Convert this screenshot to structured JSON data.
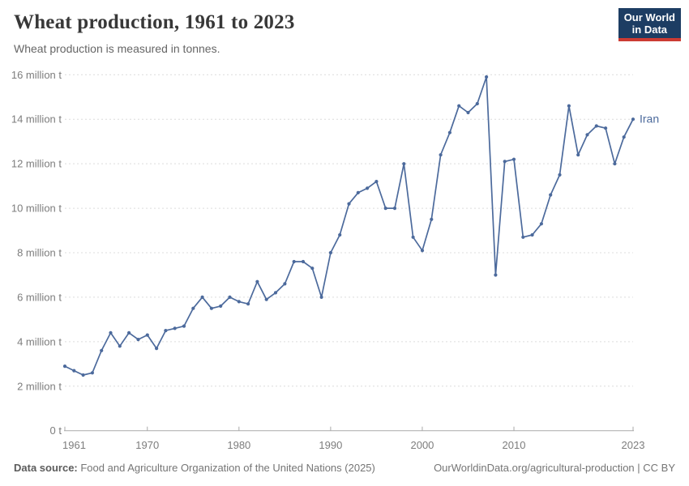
{
  "header": {
    "title": "Wheat production, 1961 to 2023",
    "subtitle": "Wheat production is measured in tonnes.",
    "logo": {
      "line1": "Our World",
      "line2": "in Data",
      "bg_color": "#1d3d63",
      "accent_color": "#cc3b33"
    }
  },
  "chart_data": {
    "type": "line",
    "title": "Wheat production, 1961 to 2023",
    "unit": "tonnes",
    "value_unit_of_series": "million tonnes",
    "legend_position": "end-of-line-label",
    "grid": "horizontal-dashed",
    "ylim_million_tonnes": [
      0,
      16
    ],
    "xlim_years": [
      1961,
      2023
    ],
    "x_tick_labels": [
      {
        "value": 1961,
        "label": "1961"
      },
      {
        "value": 1970,
        "label": "1970"
      },
      {
        "value": 1980,
        "label": "1980"
      },
      {
        "value": 1990,
        "label": "1990"
      },
      {
        "value": 2000,
        "label": "2000"
      },
      {
        "value": 2010,
        "label": "2010"
      },
      {
        "value": 2023,
        "label": "2023"
      }
    ],
    "y_tick_labels": [
      {
        "value": 0,
        "label": "0 t"
      },
      {
        "value": 2,
        "label": "2 million t"
      },
      {
        "value": 4,
        "label": "4 million t"
      },
      {
        "value": 6,
        "label": "6 million t"
      },
      {
        "value": 8,
        "label": "8 million t"
      },
      {
        "value": 10,
        "label": "10 million t"
      },
      {
        "value": 12,
        "label": "12 million t"
      },
      {
        "value": 14,
        "label": "14 million t"
      },
      {
        "value": 16,
        "label": "16 million t"
      }
    ],
    "series": [
      {
        "name": "Iran",
        "color": "#4C6A9C",
        "years": [
          1961,
          1962,
          1963,
          1964,
          1965,
          1966,
          1967,
          1968,
          1969,
          1970,
          1971,
          1972,
          1973,
          1974,
          1975,
          1976,
          1977,
          1978,
          1979,
          1980,
          1981,
          1982,
          1983,
          1984,
          1985,
          1986,
          1987,
          1988,
          1989,
          1990,
          1991,
          1992,
          1993,
          1994,
          1995,
          1996,
          1997,
          1998,
          1999,
          2000,
          2001,
          2002,
          2003,
          2004,
          2005,
          2006,
          2007,
          2008,
          2009,
          2010,
          2011,
          2012,
          2013,
          2014,
          2015,
          2016,
          2017,
          2018,
          2019,
          2020,
          2021,
          2022,
          2023
        ],
        "values_million_tonnes": [
          2.9,
          2.7,
          2.5,
          2.6,
          3.6,
          4.4,
          3.8,
          4.4,
          4.1,
          4.3,
          3.7,
          4.5,
          4.6,
          4.7,
          5.5,
          6.0,
          5.5,
          5.6,
          6.0,
          5.8,
          5.7,
          6.7,
          5.9,
          6.2,
          6.6,
          7.6,
          7.6,
          7.3,
          6.0,
          8.0,
          8.8,
          10.2,
          10.7,
          10.9,
          11.2,
          10.0,
          10.0,
          12.0,
          8.7,
          8.1,
          9.5,
          12.4,
          13.4,
          14.6,
          14.3,
          14.7,
          15.9,
          7.0,
          12.1,
          12.2,
          8.7,
          8.8,
          9.3,
          10.6,
          11.5,
          14.6,
          12.4,
          13.3,
          13.7,
          13.6,
          12.0,
          13.2,
          14.0
        ]
      }
    ],
    "end_label": "Iran"
  },
  "footer": {
    "source_prefix": "Data source:",
    "source_text": " Food and Agriculture Organization of the United Nations (2025)",
    "credit": "OurWorldinData.org/agricultural-production | CC BY"
  }
}
